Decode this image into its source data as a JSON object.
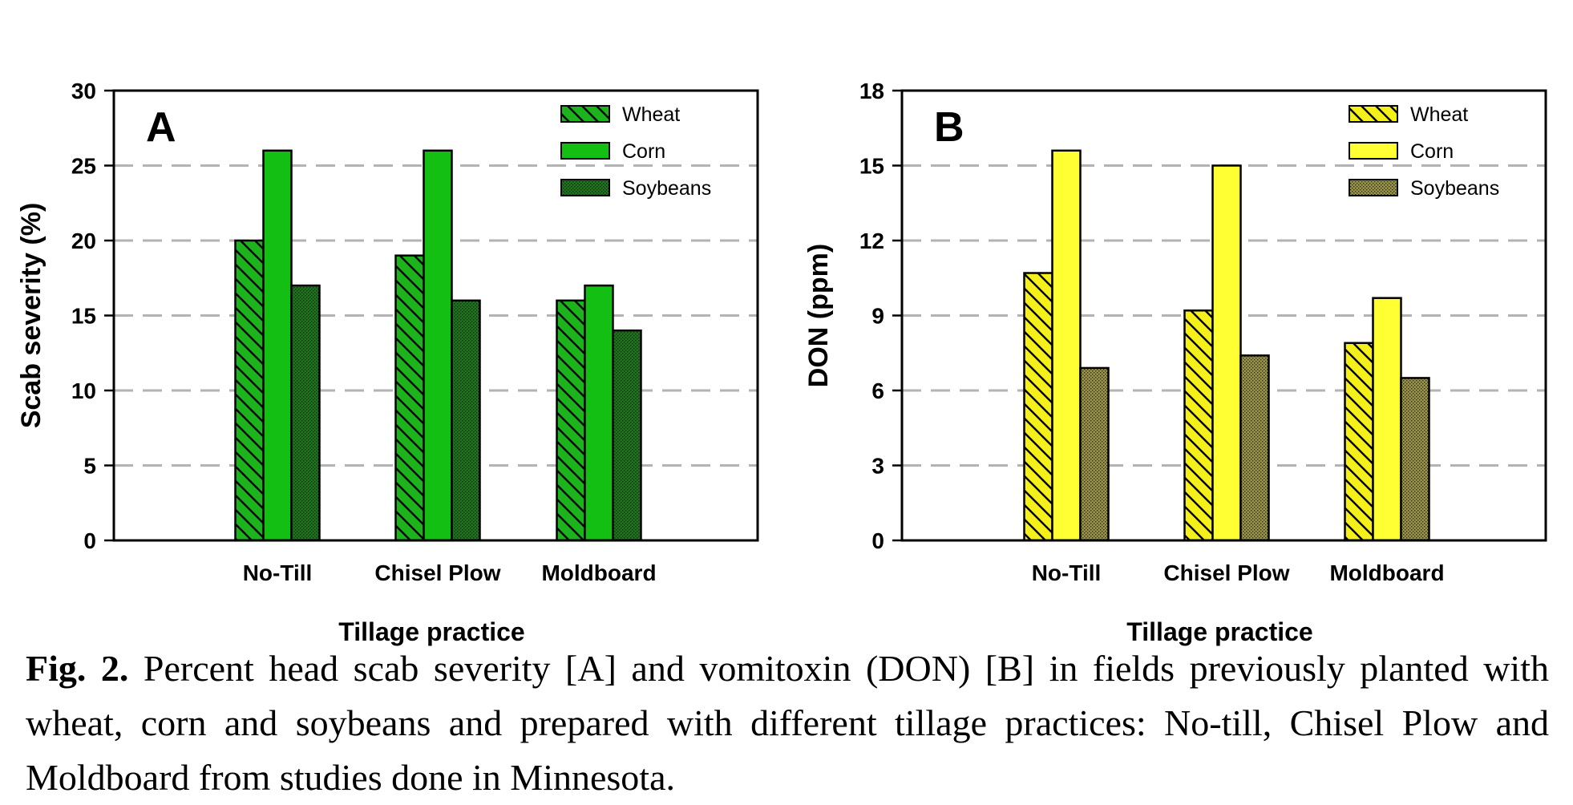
{
  "chart_data": [
    {
      "type": "bar",
      "panel_label": "A",
      "categories": [
        "No-Till",
        "Chisel Plow",
        "Moldboard"
      ],
      "series": [
        {
          "name": "Wheat",
          "values": [
            20,
            19,
            16
          ],
          "fill": "#1db31d",
          "pattern": "diagonal-hatch"
        },
        {
          "name": "Corn",
          "values": [
            26,
            26,
            17
          ],
          "fill": "#12bf12",
          "pattern": "solid"
        },
        {
          "name": "Soybeans",
          "values": [
            17,
            16,
            14
          ],
          "fill": "#1a7a1a",
          "pattern": "stipple"
        }
      ],
      "xlabel": "Tillage practice",
      "ylabel": "Scab severity (%)",
      "ylim": [
        0,
        30
      ],
      "yticks": [
        "0",
        "5",
        "10",
        "15",
        "20",
        "25",
        "30"
      ],
      "grid": "dashed horizontal",
      "legend": "top-right"
    },
    {
      "type": "bar",
      "panel_label": "B",
      "categories": [
        "No-Till",
        "Chisel Plow",
        "Moldboard"
      ],
      "series": [
        {
          "name": "Wheat",
          "values": [
            10.7,
            9.2,
            7.9
          ],
          "fill": "#f5ef1a",
          "pattern": "diagonal-hatch"
        },
        {
          "name": "Corn",
          "values": [
            15.6,
            15.0,
            9.7
          ],
          "fill": "#ffff33",
          "pattern": "solid"
        },
        {
          "name": "Soybeans",
          "values": [
            6.9,
            7.4,
            6.5
          ],
          "fill": "#8f8a3a",
          "pattern": "stipple"
        }
      ],
      "xlabel": "Tillage practice",
      "ylabel": "DON (ppm)",
      "ylim": [
        0,
        18
      ],
      "yticks": [
        "0",
        "3",
        "6",
        "9",
        "12",
        "15",
        "18"
      ],
      "grid": "dashed horizontal",
      "legend": "top-right"
    }
  ],
  "caption": {
    "label": "Fig. 2.",
    "text": " Percent head scab severity [A] and vomitoxin (DON) [B] in fields previously planted with wheat, corn and soybeans and prepared with different tillage practices: No-till, Chisel Plow and Moldboard from studies done in Minnesota."
  }
}
